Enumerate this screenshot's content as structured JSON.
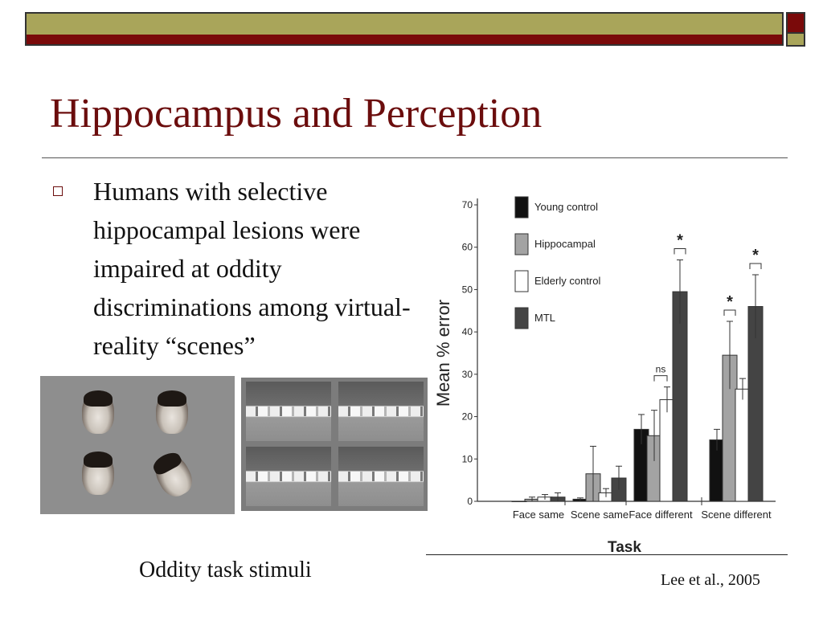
{
  "slide": {
    "title": "Hippocampus and Perception",
    "bullet": "Humans with selective hippocampal lesions were impaired at oddity discriminations among virtual-reality “scenes”",
    "caption": "Oddity task stimuli",
    "citation": "Lee et al., 2005",
    "colors": {
      "title": "#6b0d0d",
      "bar_olive": "#a9a55a",
      "bar_maroon": "#7a0a0a"
    }
  },
  "images": {
    "faces_panel": "faces-stimuli-image",
    "scenes_panel": "scenes-stimuli-image"
  },
  "chart_data": {
    "type": "bar",
    "xlabel": "Task",
    "ylabel": "Mean % error",
    "ylim": [
      0,
      70
    ],
    "yticks": [
      0,
      10,
      20,
      30,
      40,
      50,
      60,
      70
    ],
    "categories": [
      "Face same",
      "Scene same",
      "Face different",
      "Scene different"
    ],
    "legend_position": "top-left",
    "series": [
      {
        "name": "Young control",
        "color": "#111111",
        "values": [
          0,
          0.5,
          17,
          14.5
        ],
        "errors": [
          0,
          0.3,
          3.5,
          2.5
        ]
      },
      {
        "name": "Hippocampal",
        "color": "#a3a3a3",
        "values": [
          0.5,
          6.5,
          15.5,
          34.5
        ],
        "errors": [
          0.5,
          6.5,
          6,
          8
        ]
      },
      {
        "name": "Elderly control",
        "color": "#ffffff",
        "values": [
          1,
          2,
          24,
          26.5
        ],
        "errors": [
          0.6,
          1,
          3,
          2.5
        ]
      },
      {
        "name": "MTL",
        "color": "#444444",
        "values": [
          1,
          5.5,
          49.5,
          46
        ],
        "errors": [
          1,
          2.8,
          7.5,
          7.5
        ]
      }
    ],
    "annotations": [
      {
        "category": "Face same",
        "label": ""
      },
      {
        "category": "Face different",
        "label": "ns",
        "between": [
          "Hippocampal",
          "Elderly control"
        ]
      },
      {
        "category": "Face different",
        "label": "*",
        "between": [
          "MTL",
          "MTL"
        ]
      },
      {
        "category": "Scene different",
        "label": "*",
        "between": [
          "Hippocampal",
          "Hippocampal"
        ]
      },
      {
        "category": "Scene different",
        "label": "*",
        "between": [
          "MTL",
          "MTL"
        ]
      }
    ]
  }
}
